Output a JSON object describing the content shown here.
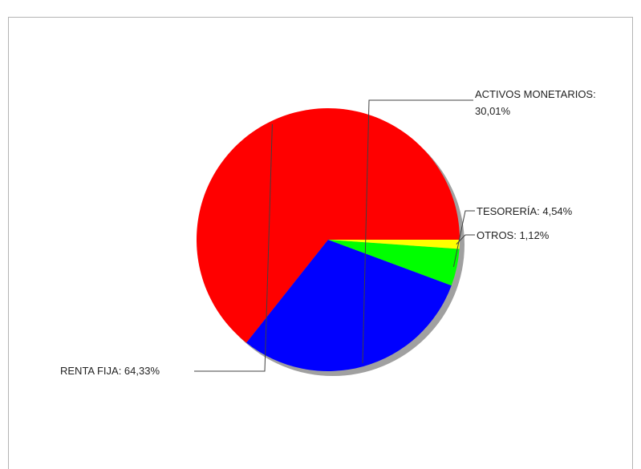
{
  "chart_data": {
    "type": "pie",
    "title": "",
    "slices": [
      {
        "label": "RENTA FIJA: 64,33%",
        "name": "RENTA FIJA",
        "value": 64.33,
        "color": "#ff0000"
      },
      {
        "label": "ACTIVOS MONETARIOS: 30,01%",
        "lines": [
          "ACTIVOS MONETARIOS:",
          "30,01%"
        ],
        "name": "ACTIVOS MONETARIOS",
        "value": 30.01,
        "color": "#0000ff"
      },
      {
        "label": "TESORERÍA: 4,54%",
        "name": "TESORERÍA",
        "value": 4.54,
        "color": "#00ff00"
      },
      {
        "label": "OTROS: 1,12%",
        "name": "OTROS",
        "value": 1.12,
        "color": "#ffff00"
      }
    ],
    "start_angle_deg": 0,
    "direction": "counterclockwise",
    "shadow": true,
    "legend": "none"
  }
}
